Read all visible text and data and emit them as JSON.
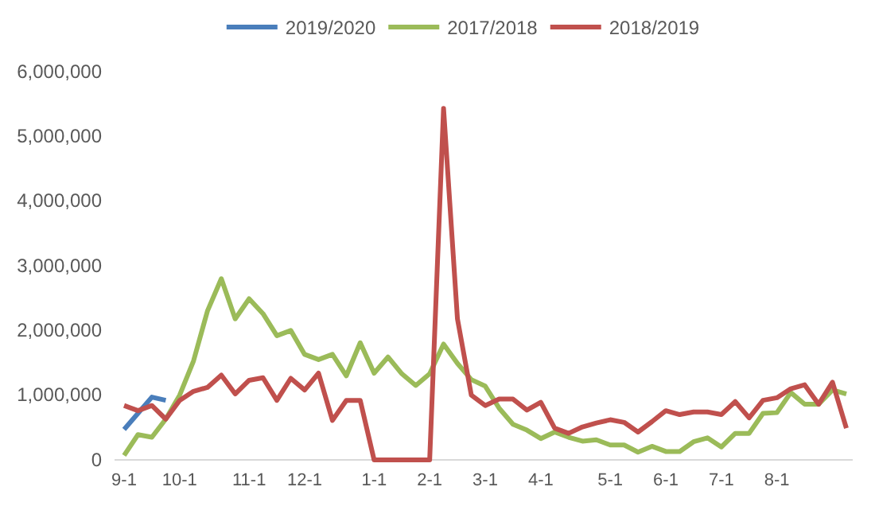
{
  "chart_data": {
    "type": "line",
    "categories": [
      "9-1",
      null,
      null,
      null,
      "10-1",
      null,
      null,
      null,
      null,
      "11-1",
      null,
      null,
      null,
      "12-1",
      null,
      null,
      null,
      null,
      "1-1",
      null,
      null,
      null,
      "2-1",
      null,
      null,
      null,
      "3-1",
      null,
      null,
      null,
      "4-1",
      null,
      null,
      null,
      null,
      "5-1",
      null,
      null,
      null,
      "6-1",
      null,
      null,
      null,
      "7-1",
      null,
      null,
      null,
      "8-1",
      null,
      null,
      null,
      null,
      null
    ],
    "series": [
      {
        "name": "2019/2020",
        "color": "#4a7ebb",
        "values": [
          470000.0,
          720000.0,
          970000.0,
          920000.0,
          null,
          null,
          null,
          null,
          null,
          null,
          null,
          null,
          null,
          null,
          null,
          null,
          null,
          null,
          null,
          null,
          null,
          null,
          null,
          null,
          null,
          null,
          null,
          null,
          null,
          null,
          null,
          null,
          null,
          null,
          null,
          null,
          null,
          null,
          null,
          null,
          null,
          null,
          null,
          null,
          null,
          null,
          null,
          null,
          null,
          null,
          null,
          null,
          null
        ]
      },
      {
        "name": "2017/2018",
        "color": "#9bbb59",
        "values": [
          70000.0,
          390000.0,
          350000.0,
          630000.0,
          1000000.0,
          1530000.0,
          2300000.0,
          2800000.0,
          2180000.0,
          2490000.0,
          2260000.0,
          1920000.0,
          2000000.0,
          1630000.0,
          1550000.0,
          1630000.0,
          1300000.0,
          1810000.0,
          1340000.0,
          1590000.0,
          1330000.0,
          1150000.0,
          1330000.0,
          1790000.0,
          1490000.0,
          1240000.0,
          1140000.0,
          800000.0,
          550000.0,
          460000.0,
          330000.0,
          430000.0,
          350000.0,
          290000.0,
          310000.0,
          230000.0,
          230000.0,
          120000.0,
          210000.0,
          130000.0,
          130000.0,
          280000.0,
          340000.0,
          200000.0,
          410000.0,
          410000.0,
          720000.0,
          730000.0,
          1040000.0,
          860000.0,
          860000.0,
          1080000.0,
          1020000.0
        ]
      },
      {
        "name": "2018/2019",
        "color": "#c0504d",
        "values": [
          840000.0,
          760000.0,
          840000.0,
          630000.0,
          920000.0,
          1060000.0,
          1120000.0,
          1310000.0,
          1020000.0,
          1230000.0,
          1270000.0,
          920000.0,
          1260000.0,
          1080000.0,
          1340000.0,
          610000.0,
          920000.0,
          920000.0,
          0,
          0,
          0,
          0,
          0,
          5430000.0,
          2180000.0,
          1000000.0,
          840000.0,
          940000.0,
          940000.0,
          770000.0,
          890000.0,
          490000.0,
          410000.0,
          510000.0,
          570000.0,
          620000.0,
          580000.0,
          430000.0,
          590000.0,
          760000.0,
          700000.0,
          740000.0,
          740000.0,
          700000.0,
          900000.0,
          650000.0,
          920000.0,
          960000.0,
          1100000.0,
          1160000.0,
          860000.0,
          1200000.0,
          490000.0
        ]
      }
    ],
    "ylim": [
      0,
      6000000
    ],
    "yticks": [
      {
        "value": 0,
        "label": "0"
      },
      {
        "value": 1000000,
        "label": "1,000,000"
      },
      {
        "value": 2000000,
        "label": "2,000,000"
      },
      {
        "value": 3000000,
        "label": "3,000,000"
      },
      {
        "value": 4000000,
        "label": "4,000,000"
      },
      {
        "value": 5000000,
        "label": "5,000,000"
      },
      {
        "value": 6000000,
        "label": "6,000,000"
      }
    ],
    "grid": false,
    "legend": "top",
    "marker": "none",
    "line_style": "solid"
  }
}
